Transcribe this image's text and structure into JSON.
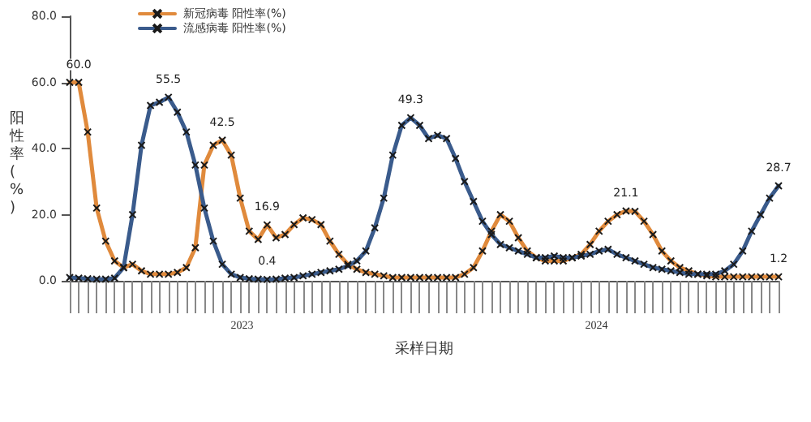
{
  "chart_data": {
    "type": "line",
    "xlabel": "采样日期",
    "ylabel": "阳性率(%)",
    "annotations": [
      "2023",
      "2024"
    ],
    "categories": [
      null,
      null,
      null,
      null,
      null,
      null,
      null,
      null,
      null,
      null,
      null,
      null,
      null,
      null,
      null,
      null,
      null,
      null,
      null,
      null,
      null,
      null,
      null,
      null,
      null,
      null,
      null,
      null,
      null,
      null,
      null,
      null,
      null,
      null,
      null,
      null,
      null,
      null,
      null,
      null,
      null,
      null,
      null,
      null,
      null,
      null,
      null,
      null,
      null,
      null,
      null,
      null,
      null,
      null,
      null,
      null,
      null,
      null,
      null,
      null,
      null,
      null,
      null,
      null,
      null,
      null,
      null,
      null,
      null,
      null,
      null,
      null,
      null,
      null,
      null,
      null,
      null,
      null,
      null,
      null
    ],
    "series": [
      {
        "name": "新冠病毒 阳性率(%)",
        "color": "#e08a3c",
        "values": [
          60,
          60,
          45,
          22,
          12,
          6,
          4,
          5,
          3,
          2,
          2,
          2,
          2.5,
          4,
          10,
          35,
          41,
          42.5,
          38,
          25,
          15,
          12.5,
          16.9,
          13,
          14,
          17,
          19,
          18.5,
          17,
          12,
          8,
          5,
          3.5,
          2.5,
          2,
          1.5,
          1,
          1,
          1,
          1,
          1,
          1,
          1,
          1,
          2,
          4,
          9,
          15,
          20,
          18,
          13,
          9,
          7,
          6,
          6,
          6,
          7,
          8,
          11,
          15,
          18,
          20,
          21.1,
          21,
          18,
          14,
          9,
          6,
          4,
          3,
          2,
          1.5,
          1.2,
          1.2,
          1.2,
          1.2,
          1.2,
          1.2,
          1.2,
          1.2
        ],
        "value_labels": [
          null,
          "60.0",
          null,
          null,
          null,
          null,
          null,
          null,
          null,
          null,
          null,
          null,
          null,
          null,
          null,
          null,
          null,
          "42.5",
          null,
          null,
          null,
          null,
          "16.9",
          null,
          null,
          null,
          null,
          null,
          null,
          null,
          null,
          null,
          null,
          null,
          null,
          null,
          null,
          null,
          null,
          null,
          null,
          null,
          null,
          null,
          null,
          null,
          null,
          null,
          null,
          null,
          null,
          null,
          null,
          null,
          null,
          null,
          null,
          null,
          null,
          null,
          null,
          null,
          "21.1",
          null,
          null,
          null,
          null,
          null,
          null,
          null,
          null,
          null,
          null,
          null,
          null,
          null,
          null,
          null,
          null,
          "1.2"
        ]
      },
      {
        "name": "流感病毒 阳性率(%)",
        "color": "#3a5b8c",
        "values": [
          1,
          0.8,
          0.6,
          0.5,
          0.5,
          0.8,
          4,
          20,
          41,
          53,
          54,
          55.5,
          51,
          45,
          35,
          22,
          12,
          5,
          2,
          1,
          0.6,
          0.5,
          0.4,
          0.5,
          0.8,
          1,
          1.5,
          2,
          2.5,
          3,
          3.5,
          4.5,
          6,
          9,
          16,
          25,
          38,
          47,
          49.3,
          47,
          43,
          44,
          43,
          37,
          30,
          24,
          18,
          14,
          11,
          10,
          9,
          8,
          7,
          7,
          7.5,
          7,
          7,
          7.5,
          8,
          9,
          9.5,
          8,
          7,
          6,
          5,
          4,
          3.5,
          3,
          2.5,
          2,
          2,
          2,
          2,
          3,
          5,
          9,
          15,
          20,
          25,
          28.7
        ],
        "value_labels": [
          null,
          null,
          null,
          null,
          null,
          null,
          null,
          null,
          null,
          null,
          null,
          "55.5",
          null,
          null,
          null,
          null,
          null,
          null,
          null,
          null,
          null,
          null,
          "0.4",
          null,
          null,
          null,
          null,
          null,
          null,
          null,
          null,
          null,
          null,
          null,
          null,
          null,
          null,
          null,
          "49.3",
          null,
          null,
          null,
          null,
          null,
          null,
          null,
          null,
          null,
          null,
          null,
          null,
          null,
          null,
          null,
          null,
          null,
          null,
          null,
          null,
          null,
          null,
          null,
          null,
          null,
          null,
          null,
          null,
          null,
          null,
          null,
          null,
          null,
          null,
          null,
          null,
          null,
          null,
          null,
          null,
          "28.7"
        ]
      }
    ],
    "ylim": [
      0,
      80
    ],
    "yticks": [
      {
        "value": 0,
        "label": "0.0"
      },
      {
        "value": 20,
        "label": "20.0"
      },
      {
        "value": 40,
        "label": "40.0"
      },
      {
        "value": 60,
        "label": "60.0"
      },
      {
        "value": 80,
        "label": "80.0"
      }
    ],
    "grid": false,
    "legend": "top",
    "marker": "cross",
    "line_style": "solid"
  }
}
